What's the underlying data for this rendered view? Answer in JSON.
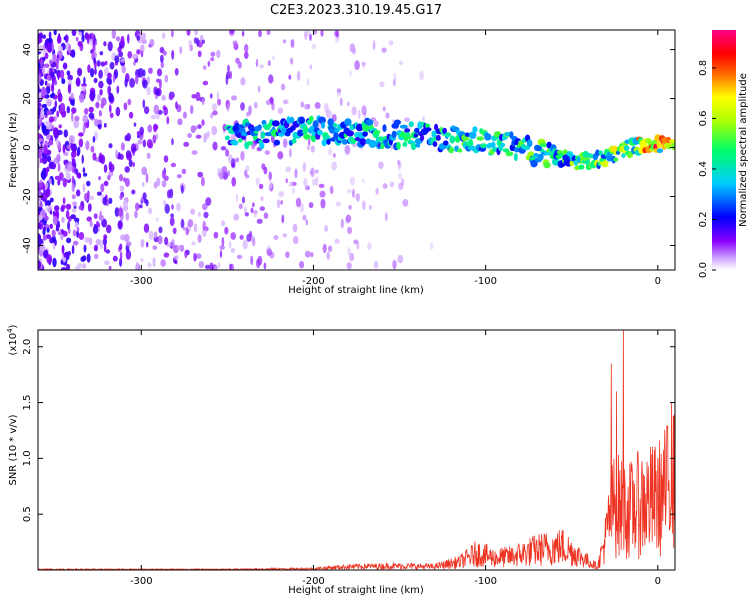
{
  "title": "C2E3.2023.310.19.45.G17",
  "chart_data": [
    {
      "type": "heatmap",
      "title": "C2E3.2023.310.19.45.G17",
      "xlabel": "Height of straight line (km)",
      "ylabel": "Frequency (Hz)",
      "xlim": [
        -360,
        10
      ],
      "ylim": [
        -50,
        48
      ],
      "xticks": [
        -300,
        -200,
        -100,
        0
      ],
      "yticks": [
        -40,
        -20,
        0,
        20,
        40
      ],
      "colorbar": {
        "label": "Normalized spectral amplitude",
        "range": [
          0.0,
          0.95
        ],
        "ticks": [
          0.0,
          0.2,
          0.4,
          0.6,
          0.8
        ],
        "colormap": [
          "#ffffff",
          "#8800ff",
          "#0000ff",
          "#00ffff",
          "#00ff00",
          "#ffff00",
          "#ff0000",
          "#ff00ff"
        ]
      },
      "ridge": [
        {
          "x": -250,
          "y": 5,
          "amp": 0.45
        },
        {
          "x": -220,
          "y": 6,
          "amp": 0.5
        },
        {
          "x": -200,
          "y": 7,
          "amp": 0.5
        },
        {
          "x": -170,
          "y": 6,
          "amp": 0.5
        },
        {
          "x": -140,
          "y": 5,
          "amp": 0.5
        },
        {
          "x": -110,
          "y": 3,
          "amp": 0.55
        },
        {
          "x": -90,
          "y": 1,
          "amp": 0.55
        },
        {
          "x": -70,
          "y": -2,
          "amp": 0.6
        },
        {
          "x": -55,
          "y": -4,
          "amp": 0.6
        },
        {
          "x": -45,
          "y": -6,
          "amp": 0.65
        },
        {
          "x": -35,
          "y": -5,
          "amp": 0.7
        },
        {
          "x": -20,
          "y": -1,
          "amp": 0.8
        },
        {
          "x": -10,
          "y": 1,
          "amp": 0.9
        },
        {
          "x": 0,
          "y": 1,
          "amp": 0.95
        },
        {
          "x": 10,
          "y": 2,
          "amp": 0.9
        }
      ],
      "noise_extent_x": [
        -360,
        -130
      ]
    },
    {
      "type": "line",
      "xlabel": "Height of straight line (km)",
      "ylabel": "SNR (10 * v/v)",
      "y_multiplier": "(x10",
      "y_multiplier_exp": "4",
      "y_multiplier_close": ")",
      "xlim": [
        -360,
        10
      ],
      "ylim": [
        0,
        2.15
      ],
      "xticks": [
        -300,
        -200,
        -100,
        0
      ],
      "yticks": [
        0.5,
        1.0,
        1.5,
        2.0
      ],
      "ytick_labels": [
        "0.5",
        "1.0",
        "1.5",
        "2.0"
      ],
      "series": [
        {
          "color": "#ee3322",
          "envelope": [
            {
              "x": -360,
              "y": 0.01
            },
            {
              "x": -250,
              "y": 0.01
            },
            {
              "x": -200,
              "y": 0.02
            },
            {
              "x": -180,
              "y": 0.05
            },
            {
              "x": -150,
              "y": 0.06
            },
            {
              "x": -130,
              "y": 0.05
            },
            {
              "x": -115,
              "y": 0.12
            },
            {
              "x": -105,
              "y": 0.25
            },
            {
              "x": -95,
              "y": 0.18
            },
            {
              "x": -85,
              "y": 0.2
            },
            {
              "x": -70,
              "y": 0.3
            },
            {
              "x": -55,
              "y": 0.35
            },
            {
              "x": -45,
              "y": 0.2
            },
            {
              "x": -35,
              "y": 0.05
            },
            {
              "x": -30,
              "y": 0.5
            },
            {
              "x": -28,
              "y": 0.8
            },
            {
              "x": -25,
              "y": 1.0
            },
            {
              "x": -20,
              "y": 0.9
            },
            {
              "x": -15,
              "y": 0.9
            },
            {
              "x": -10,
              "y": 1.0
            },
            {
              "x": 0,
              "y": 1.05
            },
            {
              "x": 5,
              "y": 1.2
            },
            {
              "x": 10,
              "y": 1.35
            }
          ],
          "spikes": [
            {
              "x": -27,
              "y": 1.85
            },
            {
              "x": -20,
              "y": 2.15
            },
            {
              "x": -24,
              "y": 1.6
            },
            {
              "x": 8,
              "y": 1.5
            }
          ]
        }
      ]
    }
  ]
}
